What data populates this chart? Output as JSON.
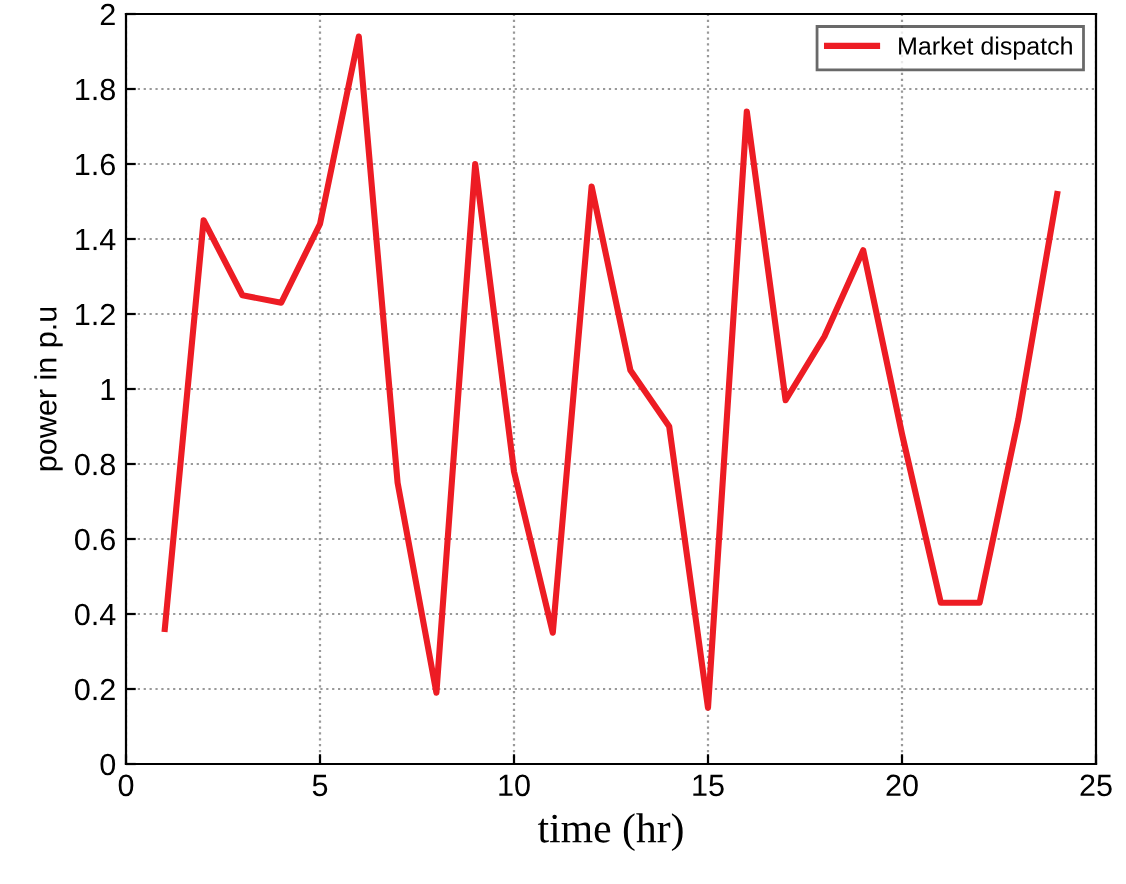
{
  "chart_data": {
    "type": "line",
    "xlabel": "time (hr)",
    "ylabel": "power in p.u",
    "x": [
      1,
      2,
      3,
      4,
      5,
      6,
      7,
      8,
      9,
      10,
      11,
      12,
      13,
      14,
      15,
      16,
      17,
      18,
      19,
      20,
      21,
      22,
      23,
      24
    ],
    "series": [
      {
        "name": "Market dispatch",
        "color": "#ed1c24",
        "values": [
          0.36,
          1.45,
          1.25,
          1.23,
          1.44,
          1.94,
          0.75,
          0.19,
          1.6,
          0.78,
          0.35,
          1.54,
          1.05,
          0.9,
          0.15,
          1.74,
          0.97,
          1.14,
          1.37,
          0.88,
          0.43,
          0.43,
          0.92,
          1.52
        ]
      }
    ],
    "xlim": [
      0,
      25
    ],
    "xticks": [
      0,
      5,
      10,
      15,
      20,
      25
    ],
    "ylim": [
      0,
      2
    ],
    "yticks": [
      0,
      0.2,
      0.4,
      0.6,
      0.8,
      1,
      1.2,
      1.4,
      1.6,
      1.8,
      2
    ],
    "grid": true,
    "legend": "top right",
    "marker": "none",
    "line_style": "solid"
  }
}
